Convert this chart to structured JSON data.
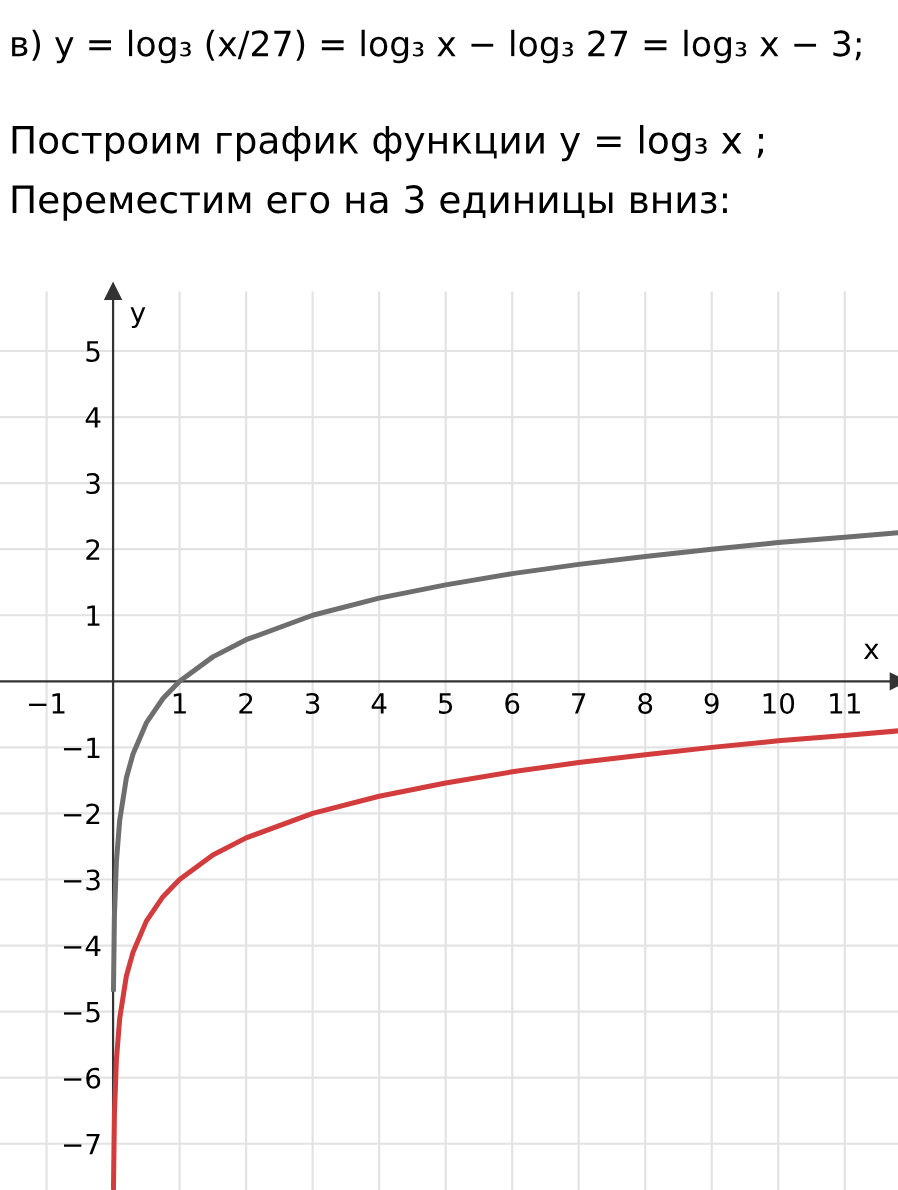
{
  "chart_data": {
    "type": "line",
    "title": "в) y = log₃ (x/27) = log₃ x − log₃ 27 = log₃ x − 3;",
    "annotations": [
      "Построим график функции y = log₃ x ;",
      "Переместим его на 3 единицы вниз:"
    ],
    "xlabel": "x",
    "ylabel": "y",
    "series": [
      {
        "color": "#6e6e6e",
        "x": [
          0.006,
          0.02,
          0.05,
          0.1,
          0.2,
          0.3,
          0.5,
          0.75,
          1,
          1.5,
          2,
          3,
          4,
          5,
          6,
          7,
          8,
          9,
          10,
          11,
          11.8
        ],
        "values": [
          -4.66,
          -3.56,
          -2.73,
          -2.1,
          -1.46,
          -1.1,
          -0.63,
          -0.26,
          0,
          0.37,
          0.63,
          1,
          1.26,
          1.46,
          1.63,
          1.77,
          1.89,
          2,
          2.1,
          2.18,
          2.25
        ]
      },
      {
        "color": "#d23c3c",
        "x": [
          0.006,
          0.02,
          0.05,
          0.1,
          0.2,
          0.3,
          0.5,
          0.75,
          1,
          1.5,
          2,
          3,
          4,
          5,
          6,
          7,
          8,
          9,
          10,
          11,
          11.8
        ],
        "values": [
          -7.66,
          -6.56,
          -5.73,
          -5.1,
          -4.46,
          -4.1,
          -3.63,
          -3.26,
          -3,
          -2.63,
          -2.37,
          -2,
          -1.74,
          -1.54,
          -1.37,
          -1.23,
          -1.11,
          -1,
          -0.9,
          -0.82,
          -0.75
        ]
      }
    ],
    "xlim": [
      -1.7,
      11.8
    ],
    "ylim": [
      -7.7,
      5.9
    ],
    "xticks": [
      -1,
      1,
      2,
      3,
      4,
      5,
      6,
      7,
      8,
      9,
      10,
      11
    ],
    "yticks": [
      -7,
      -6,
      -5,
      -4,
      -3,
      -2,
      -1,
      1,
      2,
      3,
      4,
      5
    ],
    "grid": true,
    "marker": "none",
    "line_style": "solid"
  }
}
